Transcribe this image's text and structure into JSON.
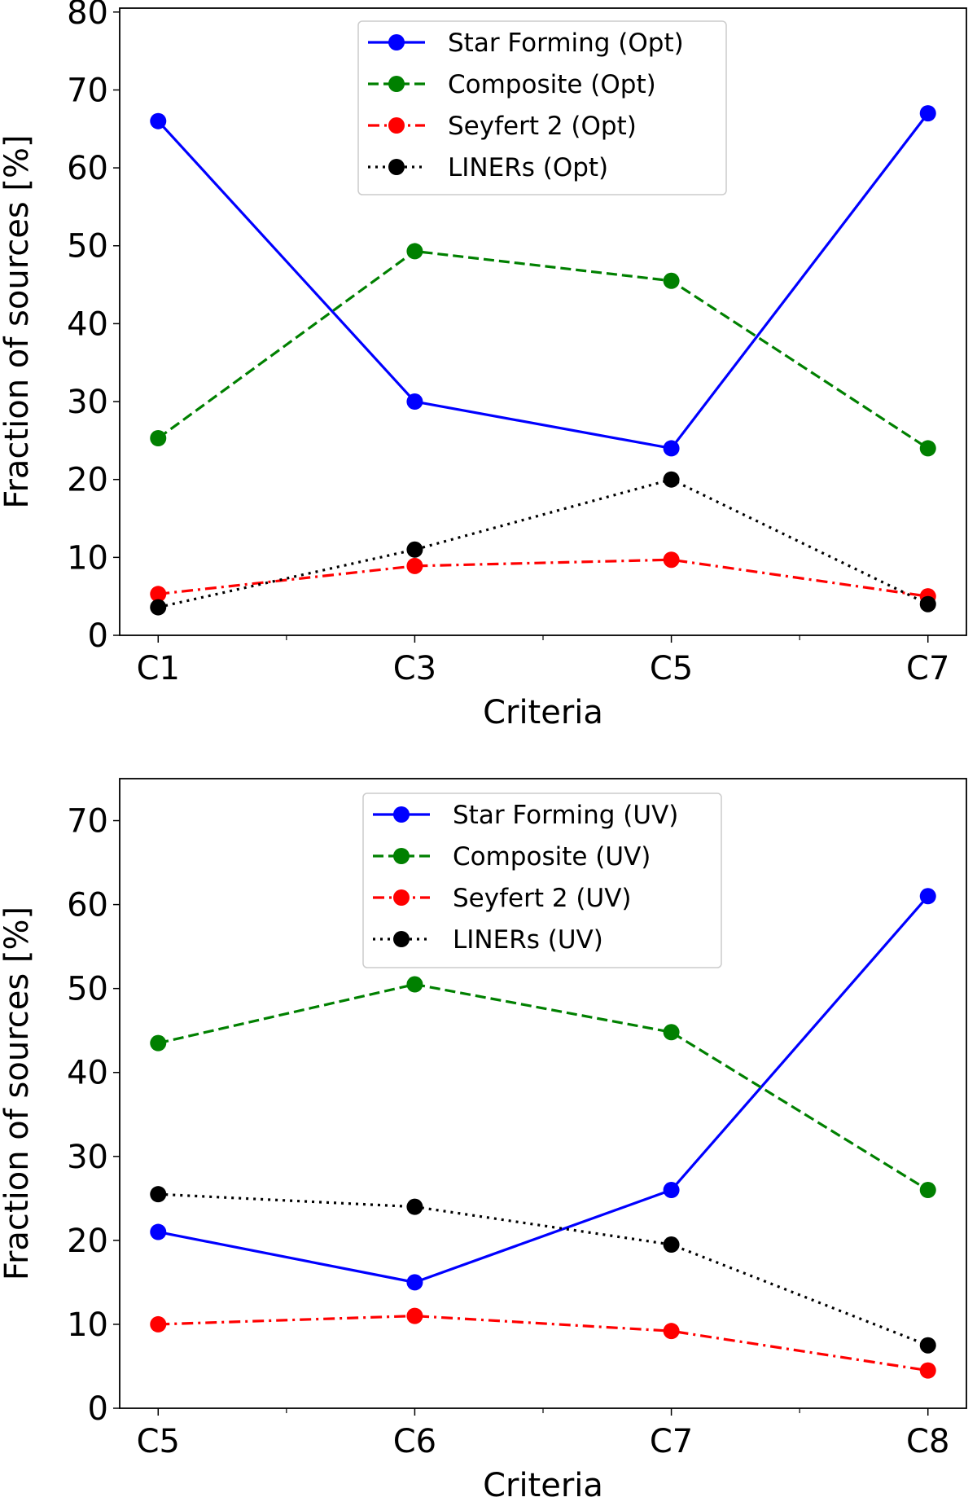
{
  "chart_data": [
    {
      "type": "line",
      "xlabel": "Criteria",
      "ylabel": "Fraction of sources [%]",
      "categories": [
        "C1",
        "C3",
        "C5",
        "C7"
      ],
      "ylim": [
        0,
        80.5
      ],
      "yticks": [
        0,
        10,
        20,
        30,
        40,
        50,
        60,
        70,
        80
      ],
      "grid": false,
      "legend_position": "top-center",
      "series": [
        {
          "name": "Star Forming (Opt)",
          "color": "#0000ff",
          "style": "solid",
          "values": [
            66,
            30,
            24,
            67
          ]
        },
        {
          "name": "Composite (Opt)",
          "color": "#008000",
          "style": "dashed",
          "values": [
            25.3,
            49.3,
            45.5,
            24
          ]
        },
        {
          "name": "Seyfert 2 (Opt)",
          "color": "#ff0000",
          "style": "dashdot",
          "values": [
            5.3,
            8.9,
            9.7,
            5
          ]
        },
        {
          "name": "LINERs (Opt)",
          "color": "#000000",
          "style": "dotted",
          "values": [
            3.6,
            11,
            20,
            4
          ]
        }
      ]
    },
    {
      "type": "line",
      "xlabel": "Criteria",
      "ylabel": "Fraction of sources [%]",
      "categories": [
        "C5",
        "C6",
        "C7",
        "C8"
      ],
      "ylim": [
        0,
        75
      ],
      "yticks": [
        0,
        10,
        20,
        30,
        40,
        50,
        60,
        70
      ],
      "grid": false,
      "legend_position": "top-center",
      "series": [
        {
          "name": "Star Forming (UV)",
          "color": "#0000ff",
          "style": "solid",
          "values": [
            21,
            15,
            26,
            61
          ]
        },
        {
          "name": "Composite (UV)",
          "color": "#008000",
          "style": "dashed",
          "values": [
            43.5,
            50.5,
            44.8,
            26
          ]
        },
        {
          "name": "Seyfert 2 (UV)",
          "color": "#ff0000",
          "style": "dashdot",
          "values": [
            10,
            11,
            9.2,
            4.5
          ]
        },
        {
          "name": "LINERs (UV)",
          "color": "#000000",
          "style": "dotted",
          "values": [
            25.5,
            24,
            19.5,
            7.5
          ]
        }
      ]
    }
  ]
}
